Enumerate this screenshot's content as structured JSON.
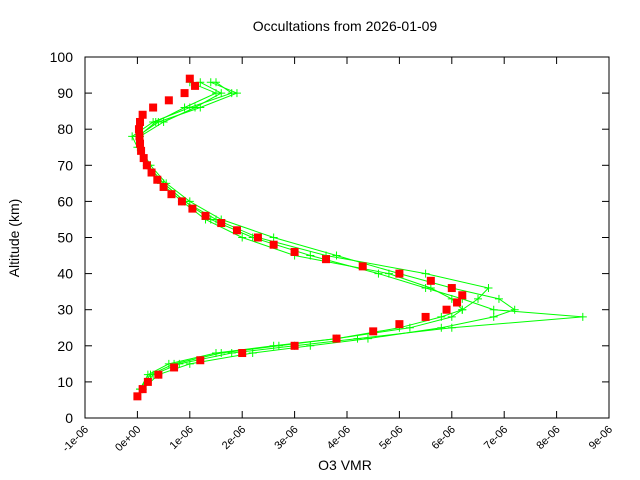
{
  "chart_data": {
    "type": "line",
    "title": "Occultations from 2026-01-09",
    "x_label": "O3 VMR",
    "y_label": "Altitude (km)",
    "xlim": [
      -1e-06,
      9e-06
    ],
    "ylim": [
      0,
      100
    ],
    "xticks": [
      {
        "value": -1e-06,
        "label": "-1e-06"
      },
      {
        "value": 0,
        "label": "0e+00"
      },
      {
        "value": 1e-06,
        "label": "1e-06"
      },
      {
        "value": 2e-06,
        "label": "2e-06"
      },
      {
        "value": 3e-06,
        "label": "3e-06"
      },
      {
        "value": 4e-06,
        "label": "4e-06"
      },
      {
        "value": 5e-06,
        "label": "5e-06"
      },
      {
        "value": 6e-06,
        "label": "6e-06"
      },
      {
        "value": 7e-06,
        "label": "7e-06"
      },
      {
        "value": 8e-06,
        "label": "8e-06"
      },
      {
        "value": 9e-06,
        "label": "9e-06"
      }
    ],
    "yticks": [
      0,
      10,
      20,
      30,
      40,
      50,
      60,
      70,
      80,
      90,
      100
    ],
    "series": [
      {
        "color": "#00ff00",
        "marker": "plus",
        "line": true,
        "x": [
          1e-07,
          3e-07,
          8e-07,
          1.8e-06,
          3e-06,
          4.2e-06,
          6e-06,
          8.5e-06,
          6.8e-06,
          6.2e-06,
          5.5e-06,
          4.6e-06,
          3.3e-06,
          2.2e-06,
          1.4e-06,
          9e-07,
          5e-07,
          2e-07,
          0.0,
          -1e-07,
          3e-07,
          1e-06,
          1.8e-06,
          1.5e-06
        ],
        "y": [
          8,
          12,
          15,
          18,
          20,
          22,
          25,
          28,
          30,
          33,
          36,
          40,
          45,
          50,
          55,
          60,
          65,
          70,
          75,
          78,
          82,
          86,
          90,
          93
        ]
      },
      {
        "color": "#00ff00",
        "marker": "plus",
        "line": true,
        "x": [
          1e-07,
          4e-07,
          1e-06,
          2.2e-06,
          3.3e-06,
          4.4e-06,
          5.8e-06,
          6.8e-06,
          7.2e-06,
          6.9e-06,
          6e-06,
          5e-06,
          3.8e-06,
          2.6e-06,
          1.6e-06,
          1e-06,
          5.5e-07,
          2.5e-07,
          5e-08,
          0.0,
          4e-07,
          1.2e-06,
          1.9e-06,
          1.4e-06
        ],
        "y": [
          8,
          12,
          15,
          18,
          20,
          22,
          25,
          28,
          30,
          33,
          36,
          40,
          45,
          50,
          55,
          60,
          65,
          70,
          75,
          78,
          82,
          86,
          90,
          93
        ]
      },
      {
        "color": "#00ff00",
        "marker": "plus",
        "line": true,
        "x": [
          5e-08,
          2e-07,
          6e-07,
          1.5e-06,
          2.6e-06,
          3.8e-06,
          5e-06,
          5.8e-06,
          6.2e-06,
          6.5e-06,
          6.7e-06,
          5.5e-06,
          3.6e-06,
          2.3e-06,
          1.5e-06,
          9e-07,
          5e-07,
          2e-07,
          5e-08,
          5e-08,
          5e-07,
          1.1e-06,
          1.6e-06,
          1.2e-06
        ],
        "y": [
          8,
          12,
          15,
          18,
          20,
          22,
          25,
          28,
          30,
          33,
          36,
          40,
          45,
          50,
          55,
          60,
          65,
          70,
          75,
          78,
          82,
          86,
          90,
          93
        ]
      },
      {
        "color": "#00ff00",
        "marker": "plus",
        "line": true,
        "x": [
          5e-08,
          2.5e-07,
          7e-07,
          1.6e-06,
          2.7e-06,
          3.8e-06,
          5.2e-06,
          6e-06,
          6.2e-06,
          6e-06,
          5.6e-06,
          4.8e-06,
          3e-06,
          2e-06,
          1.3e-06,
          8.5e-07,
          4.5e-07,
          1.8e-07,
          4e-08,
          2e-08,
          3.5e-07,
          9e-07,
          1.5e-06,
          1e-06
        ],
        "y": [
          8,
          12,
          15,
          18,
          20,
          22,
          25,
          28,
          30,
          33,
          36,
          40,
          45,
          50,
          55,
          60,
          65,
          70,
          75,
          78,
          82,
          86,
          90,
          93
        ]
      },
      {
        "color": "#ff0000",
        "marker": "square",
        "line": false,
        "x": [
          0.0,
          1e-07,
          2e-07,
          4e-07,
          7e-07,
          1.2e-06,
          2e-06,
          3e-06,
          3.8e-06,
          4.5e-06,
          5e-06,
          5.5e-06,
          5.9e-06,
          6.1e-06,
          6.2e-06,
          6e-06,
          5.6e-06,
          5e-06,
          4.3e-06,
          3.6e-06,
          3e-06,
          2.6e-06,
          2.3e-06,
          1.9e-06,
          1.6e-06,
          1.3e-06,
          1.05e-06,
          8.5e-07,
          6.5e-07,
          5e-07,
          3.8e-07,
          2.7e-07,
          1.8e-07,
          1.2e-07,
          7e-08,
          5e-08,
          4e-08,
          3e-08,
          5e-08,
          1e-07,
          3e-07,
          6e-07,
          9e-07,
          1.1e-06,
          1e-06
        ],
        "y": [
          6,
          8,
          10,
          12,
          14,
          16,
          18,
          20,
          22,
          24,
          26,
          28,
          30,
          32,
          34,
          36,
          38,
          40,
          42,
          44,
          46,
          48,
          50,
          52,
          54,
          56,
          58,
          60,
          62,
          64,
          66,
          68,
          70,
          72,
          74,
          76,
          78,
          80,
          82,
          84,
          86,
          88,
          90,
          92,
          94
        ]
      }
    ]
  }
}
